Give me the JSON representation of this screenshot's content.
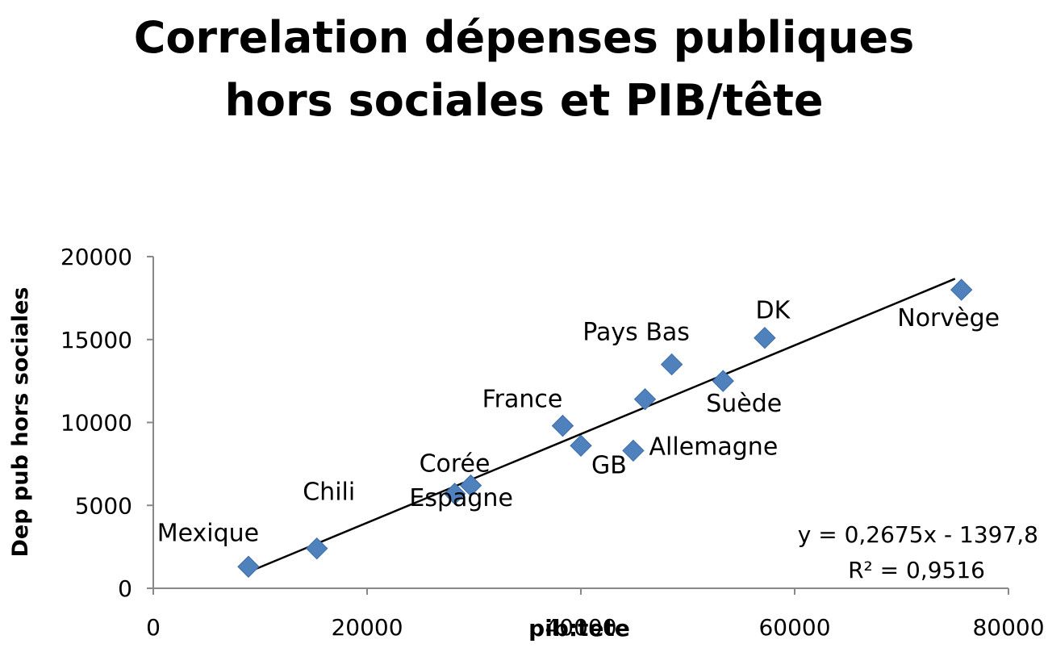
{
  "chart_data": {
    "type": "scatter",
    "title_lines": [
      "Correlation dépenses publiques",
      "hors sociales et PIB/tête"
    ],
    "xlabel": "pib:tete",
    "ylabel": "Dep pub hors sociales",
    "xlim": [
      0,
      80000
    ],
    "ylim": [
      0,
      20000
    ],
    "x_ticks": [
      0,
      20000,
      40000,
      60000,
      80000
    ],
    "y_ticks": [
      0,
      5000,
      10000,
      15000,
      20000
    ],
    "grid": {
      "x": false,
      "y": false
    },
    "marker_color": "#4f81bd",
    "points": [
      {
        "label": "Mexique",
        "x": 8900,
        "y": 1300
      },
      {
        "label": "Chili",
        "x": 15300,
        "y": 2400
      },
      {
        "label": "Espagne",
        "x": 28200,
        "y": 5700
      },
      {
        "label": "Corée",
        "x": 29700,
        "y": 6200
      },
      {
        "label": "France",
        "x": 38300,
        "y": 9800
      },
      {
        "label": "",
        "x": 40000,
        "y": 8600
      },
      {
        "label": "GB",
        "x": 44900,
        "y": 8300
      },
      {
        "label": "Allemagne",
        "x": 46000,
        "y": 11400
      },
      {
        "label": "Pays Bas",
        "x": 48500,
        "y": 13500
      },
      {
        "label": "Suède",
        "x": 53300,
        "y": 12500
      },
      {
        "label": "DK",
        "x": 57200,
        "y": 15100
      },
      {
        "label": "Norvège",
        "x": 75600,
        "y": 18000
      }
    ],
    "trendline": {
      "type": "linear",
      "x_range": [
        9000,
        75000
      ],
      "equation": "y = 0,2675x - 1397,8",
      "r2": "R² = 0,9516"
    }
  }
}
